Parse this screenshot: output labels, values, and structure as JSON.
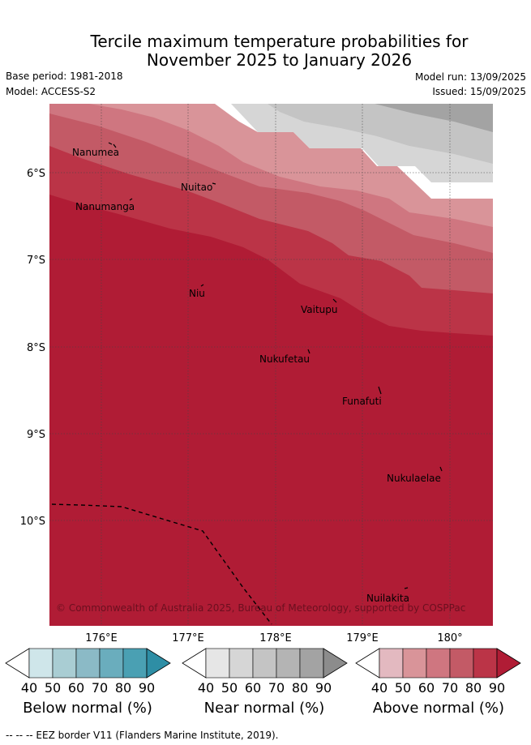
{
  "title_line1": "Tercile maximum temperature probabilities for",
  "title_line2": "November 2025 to January 2026",
  "base_period": "Base period: 1981-2018",
  "model": "Model: ACCESS-S2",
  "model_run": "Model run: 13/09/2025",
  "issued": "Issued: 15/09/2025",
  "map": {
    "lat_labels": [
      "6°S",
      "7°S",
      "8°S",
      "9°S",
      "10°S"
    ],
    "lon_labels": [
      "176°E",
      "177°E",
      "178°E",
      "179°E",
      "180°"
    ],
    "islands": [
      "Nanumea",
      "Nuitao",
      "Nanumanga",
      "Niu",
      "Vaitupu",
      "Nukufetau",
      "Funafuti",
      "Nukulaelae",
      "Nuilakita"
    ],
    "copyright": "© Commonwealth of Australia 2025, Bureau of Meteorology, supported by COSPPac"
  },
  "colorbars": [
    {
      "label": "Below normal (%)",
      "ticks": [
        "40",
        "50",
        "60",
        "70",
        "80",
        "90"
      ],
      "colors": [
        "#ffffff",
        "#cfe6ea",
        "#a9cdd3",
        "#8bbac6",
        "#6aadbd",
        "#4aa0b3",
        "#2e8ea5"
      ]
    },
    {
      "label": "Near normal (%)",
      "ticks": [
        "40",
        "50",
        "60",
        "70",
        "80",
        "90"
      ],
      "colors": [
        "#ffffff",
        "#e6e6e6",
        "#d6d6d6",
        "#c4c4c4",
        "#b4b4b4",
        "#a3a3a3",
        "#8c8c8c"
      ]
    },
    {
      "label": "Above normal (%)",
      "ticks": [
        "40",
        "50",
        "60",
        "70",
        "80",
        "90"
      ],
      "colors": [
        "#ffffff",
        "#e3b9c0",
        "#d99499",
        "#cf7680",
        "#c35a66",
        "#bb3447",
        "#b01c35"
      ]
    }
  ],
  "eez_note": "-- -- -- EEZ border V11 (Flanders Marine Institute, 2019)."
}
